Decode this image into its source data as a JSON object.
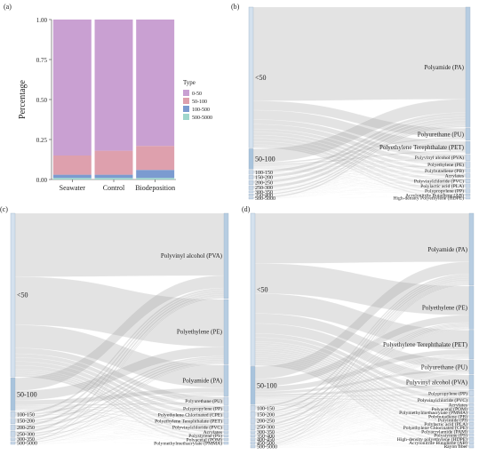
{
  "chart_data": [
    {
      "panel": "(a)",
      "type": "bar",
      "stacked": true,
      "categories": [
        "Seawater",
        "Control",
        "Biodeposition"
      ],
      "ylabel": "Percentage",
      "ylim": [
        0,
        1
      ],
      "yticks": [
        "0.00",
        "0.25",
        "0.50",
        "0.75",
        "1.00"
      ],
      "legend_title": "Type",
      "legend_position": "right",
      "series": [
        {
          "name": "0-50",
          "color": "#c9a0d2",
          "values": [
            0.85,
            0.82,
            0.79
          ]
        },
        {
          "name": "50-100",
          "color": "#dea0ad",
          "values": [
            0.12,
            0.15,
            0.15
          ]
        },
        {
          "name": "100-500",
          "color": "#7b9bd0",
          "values": [
            0.02,
            0.02,
            0.05
          ]
        },
        {
          "name": "500-5000",
          "color": "#9fd6cc",
          "values": [
            0.01,
            0.01,
            0.01
          ]
        }
      ]
    },
    {
      "panel": "(b)",
      "type": "sankey",
      "left_nodes": [
        {
          "label": "<50",
          "value": 0.69
        },
        {
          "label": "50-100",
          "value": 0.1
        },
        {
          "label": "100-150",
          "value": 0.02
        },
        {
          "label": "150-200",
          "value": 0.02
        },
        {
          "label": "200-250",
          "value": 0.02
        },
        {
          "label": "250-300",
          "value": 0.02
        },
        {
          "label": "300-350",
          "value": 0.01
        },
        {
          "label": "350-400",
          "value": 0.01
        },
        {
          "label": "500-5000",
          "value": 0.01
        }
      ],
      "right_nodes": [
        {
          "label": "Polyamide (PA)",
          "value": 0.6
        },
        {
          "label": "Polyurethane (PU)",
          "value": 0.06
        },
        {
          "label": "Polyethylene Terephthalate (PET)",
          "value": 0.06
        },
        {
          "label": "Polyvinyl alcohol (PVA)",
          "value": 0.03
        },
        {
          "label": "Polyethylene (PE)",
          "value": 0.03
        },
        {
          "label": "Polybutadiene (PB)",
          "value": 0.02
        },
        {
          "label": "Acrylates",
          "value": 0.02
        },
        {
          "label": "Polyvinylchloride (PVC)",
          "value": 0.02
        },
        {
          "label": "Polylactic acid (PLA)",
          "value": 0.02
        },
        {
          "label": "Polypropylene (PP)",
          "value": 0.02
        },
        {
          "label": "Acrylonitrile Butadiene (AB)",
          "value": 0.01
        },
        {
          "label": "High-density Polyethylene (HDPE)",
          "value": 0.01
        }
      ]
    },
    {
      "panel": "(c)",
      "type": "sankey",
      "left_nodes": [
        {
          "label": "<50",
          "value": 0.6
        },
        {
          "label": "50-100",
          "value": 0.12
        },
        {
          "label": "100-150",
          "value": 0.02
        },
        {
          "label": "150-200",
          "value": 0.02
        },
        {
          "label": "200-250",
          "value": 0.02
        },
        {
          "label": "250-300",
          "value": 0.02
        },
        {
          "label": "300-350",
          "value": 0.01
        },
        {
          "label": "500-5000",
          "value": 0.01
        }
      ],
      "right_nodes": [
        {
          "label": "Polyvinyl alcohol (PVA)",
          "value": 0.33
        },
        {
          "label": "Polyethylene (PE)",
          "value": 0.25
        },
        {
          "label": "Polyamide (PA)",
          "value": 0.12
        },
        {
          "label": "Polyurethane (PU)",
          "value": 0.03
        },
        {
          "label": "Polypropylene (PP)",
          "value": 0.02
        },
        {
          "label": "Polyethylene Chlorinated (CPE)",
          "value": 0.02
        },
        {
          "label": "Polyethylene Terephthalate (PET)",
          "value": 0.02
        },
        {
          "label": "Polyvinylchloride (PVC)",
          "value": 0.02
        },
        {
          "label": "Acrylates",
          "value": 0.01
        },
        {
          "label": "Polystyrene (PS)",
          "value": 0.01
        },
        {
          "label": "Polyacetal (POM)",
          "value": 0.01
        },
        {
          "label": "Polymethylmethacrylate (PMMA)",
          "value": 0.01
        }
      ]
    },
    {
      "panel": "(d)",
      "type": "sankey",
      "left_nodes": [
        {
          "label": "<50",
          "value": 0.56
        },
        {
          "label": "50-100",
          "value": 0.14
        },
        {
          "label": "100-150",
          "value": 0.02
        },
        {
          "label": "150-200",
          "value": 0.02
        },
        {
          "label": "200-250",
          "value": 0.02
        },
        {
          "label": "250-300",
          "value": 0.02
        },
        {
          "label": "300-350",
          "value": 0.01
        },
        {
          "label": "350-400",
          "value": 0.01
        },
        {
          "label": "400-450",
          "value": 0.01
        },
        {
          "label": "450-500",
          "value": 0.01
        },
        {
          "label": "500-5000",
          "value": 0.01
        }
      ],
      "right_nodes": [
        {
          "label": "Polyamide (PA)",
          "value": 0.25
        },
        {
          "label": "Polyethylene (PE)",
          "value": 0.15
        },
        {
          "label": "Polyethylene Terephthalate (PET)",
          "value": 0.1
        },
        {
          "label": "Polyurethane (PU)",
          "value": 0.05
        },
        {
          "label": "Polyvinyl alcohol (PVA)",
          "value": 0.05
        },
        {
          "label": "Polypropylene (PP)",
          "value": 0.02
        },
        {
          "label": "Polyvinylchloride (PVC)",
          "value": 0.02
        },
        {
          "label": "Acrylates",
          "value": 0.01
        },
        {
          "label": "Polyacetal (POM)",
          "value": 0.01
        },
        {
          "label": "Polymethylmethacrylate (PMMA)",
          "value": 0.01
        },
        {
          "label": "Polybutadiene (PB)",
          "value": 0.01
        },
        {
          "label": "Polyimide (PI)",
          "value": 0.01
        },
        {
          "label": "Polylactic acid (PLA)",
          "value": 0.01
        },
        {
          "label": "Polyethylene Chlorinated (CPE)",
          "value": 0.01
        },
        {
          "label": "Polyacrylamide (PAM)",
          "value": 0.01
        },
        {
          "label": "Polystyrene (PS)",
          "value": 0.01
        },
        {
          "label": "High-density polyethylene (HDPE)",
          "value": 0.01
        },
        {
          "label": "Acrylonitrile Butadiene (AB)",
          "value": 0.01
        },
        {
          "label": "Rayon fiber",
          "value": 0.01
        }
      ]
    }
  ]
}
